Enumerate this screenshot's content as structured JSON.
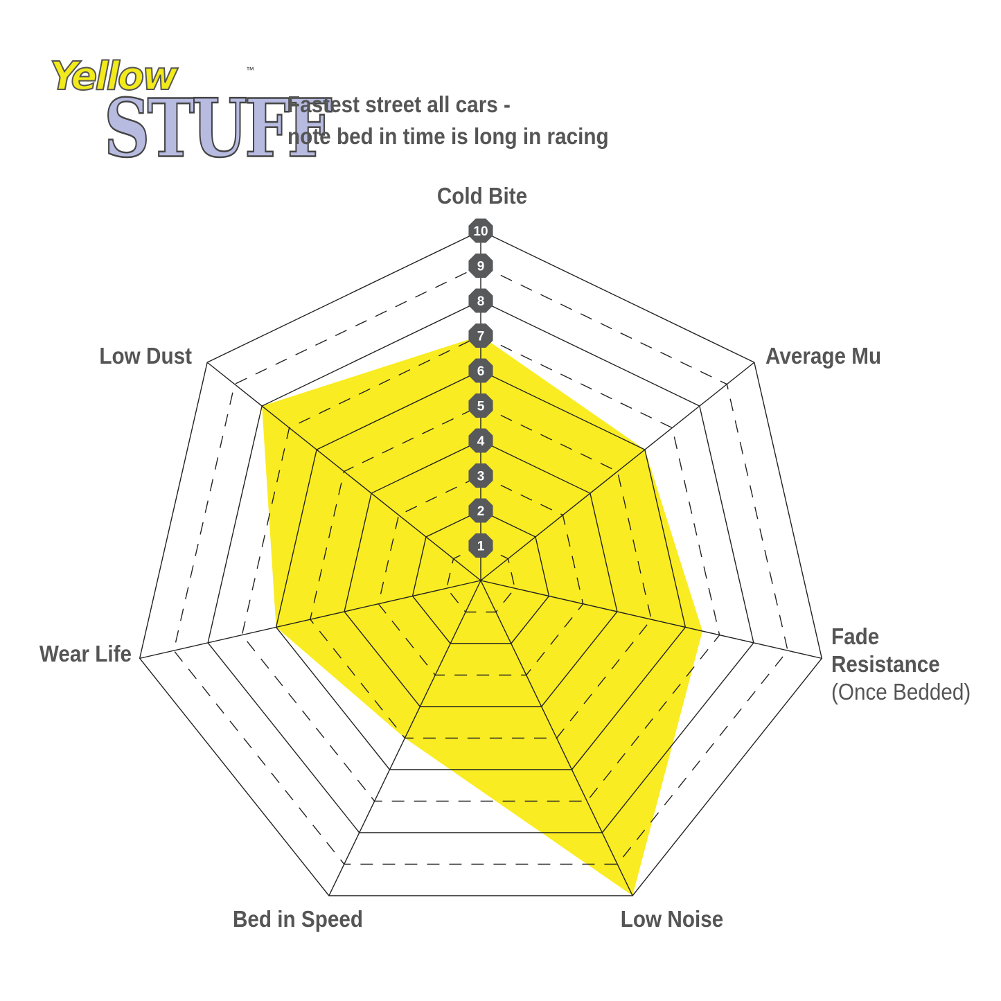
{
  "logo": {
    "line1": "Yellow",
    "line2": "STUFF",
    "tm": "™"
  },
  "subtitle": [
    "Fastest street all cars -",
    "note bed in time is long in racing"
  ],
  "chart_data": {
    "type": "radar",
    "axes": [
      "Cold Bite",
      "Average Mu",
      "Fade Resistance (Once Bedded)",
      "Low Noise",
      "Bed in Speed",
      "Wear Life",
      "Low Dust"
    ],
    "axis_labels": [
      [
        "Cold Bite"
      ],
      [
        "Average Mu"
      ],
      [
        "Fade",
        "Resistance",
        "(Once Bedded)"
      ],
      [
        "Low Noise"
      ],
      [
        "Bed in Speed"
      ],
      [
        "Wear Life"
      ],
      [
        "Low Dust"
      ]
    ],
    "values": [
      7,
      6,
      6.5,
      10,
      5,
      6,
      8
    ],
    "scale_ticks": [
      "1",
      "2",
      "3",
      "4",
      "5",
      "6",
      "7",
      "8",
      "9",
      "10"
    ],
    "range": [
      0,
      10
    ],
    "fill_color": "#f9ec22",
    "badge_color": "#58595b",
    "grid": "solid on even levels, dashed on odd levels"
  }
}
